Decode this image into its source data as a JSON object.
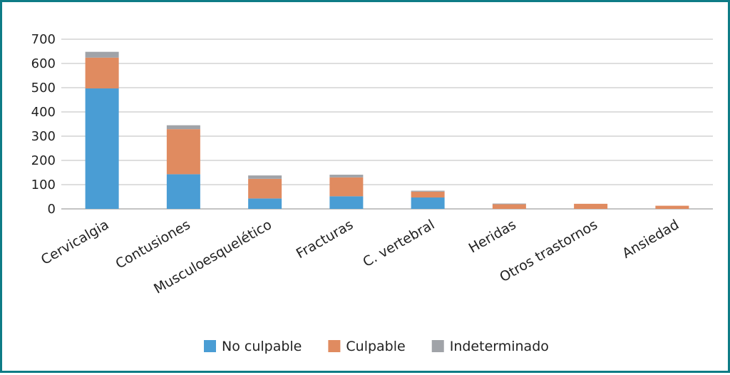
{
  "chart_data": {
    "type": "bar",
    "stacked": true,
    "title": "",
    "xlabel": "",
    "ylabel": "",
    "ylim": [
      0,
      700
    ],
    "yticks": [
      0,
      100,
      200,
      300,
      400,
      500,
      600,
      700
    ],
    "grid": true,
    "legend_position": "bottom",
    "categories": [
      "Cervicalgia",
      "Contusiones",
      "Musculoesquelético",
      "Fracturas",
      "C. vertebral",
      "Heridas",
      "Otros trastornos",
      "Ansiedad"
    ],
    "series": [
      {
        "name": "No culpable",
        "color": "#4a9dd4",
        "values": [
          497,
          143,
          43,
          52,
          47,
          0,
          0,
          0
        ]
      },
      {
        "name": "Culpable",
        "color": "#e08b60",
        "values": [
          127,
          186,
          81,
          78,
          24,
          19,
          21,
          13
        ]
      },
      {
        "name": "Indeterminado",
        "color": "#a0a3a8",
        "values": [
          24,
          16,
          14,
          11,
          4,
          3,
          0,
          0
        ]
      }
    ]
  }
}
